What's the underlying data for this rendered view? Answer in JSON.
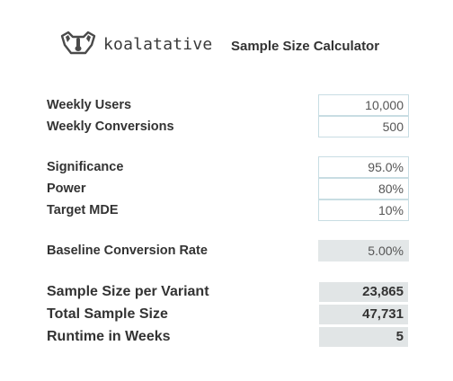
{
  "header": {
    "brand": "koalatative",
    "logo_icon": "koala-head-icon",
    "title": "Sample Size Calculator"
  },
  "inputs": {
    "weekly_users": {
      "label": "Weekly Users",
      "value": "10,000"
    },
    "weekly_conversions": {
      "label": "Weekly Conversions",
      "value": "500"
    },
    "significance": {
      "label": "Significance",
      "value": "95.0%"
    },
    "power": {
      "label": "Power",
      "value": "80%"
    },
    "target_mde": {
      "label": "Target MDE",
      "value": "10%"
    }
  },
  "baseline": {
    "label": "Baseline Conversion Rate",
    "value": "5.00%"
  },
  "results": {
    "sample_size_per_variant": {
      "label": "Sample Size per Variant",
      "value": "23,865"
    },
    "total_sample_size": {
      "label": "Total Sample Size",
      "value": "47,731"
    },
    "runtime_weeks": {
      "label": "Runtime in Weeks",
      "value": "5"
    }
  },
  "colors": {
    "input_border": "#c8dde3",
    "computed_bg": "#e3e7e8",
    "text": "#333333"
  }
}
